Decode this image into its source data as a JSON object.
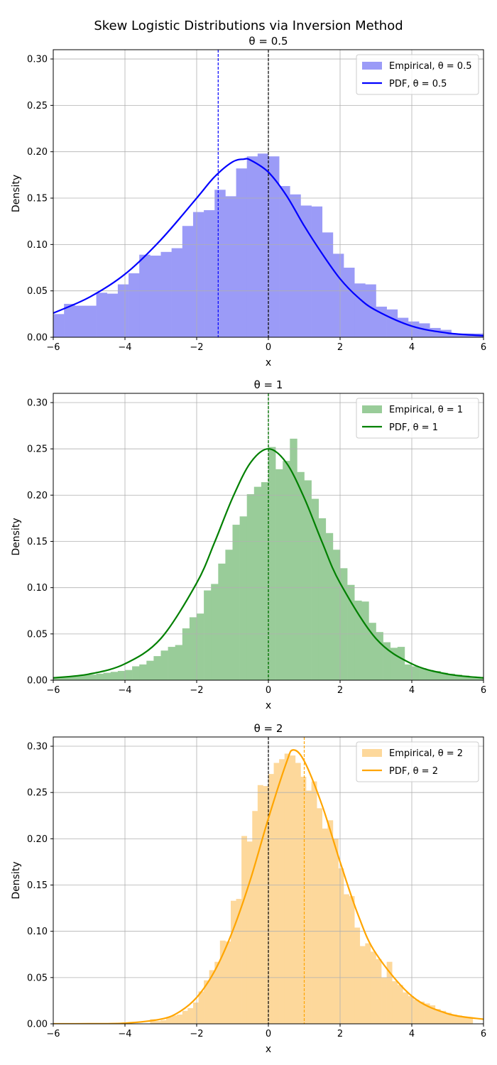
{
  "suptitle": "Skew Logistic Distributions via Inversion Method",
  "chart_data": [
    {
      "type": "bar",
      "title": "θ = 0.5",
      "theta": 0.5,
      "xlabel": "x",
      "ylabel": "Density",
      "xlim": [
        -6,
        6
      ],
      "ylim": [
        0,
        0.31
      ],
      "xticks": [
        -6,
        -4,
        -2,
        0,
        2,
        4,
        6
      ],
      "yticks": [
        0.0,
        0.05,
        0.1,
        0.15,
        0.2,
        0.25,
        0.3
      ],
      "grid": true,
      "legend": "top-right",
      "colors": {
        "bar": "#9b9bf7",
        "line": "#0000ff",
        "vline": "#0000ff"
      },
      "histogram": {
        "bin_width": 0.3,
        "bin_start": -6.0,
        "values": [
          0.025,
          0.036,
          0.034,
          0.034,
          0.048,
          0.047,
          0.057,
          0.069,
          0.089,
          0.088,
          0.092,
          0.096,
          0.12,
          0.135,
          0.137,
          0.159,
          0.152,
          0.182,
          0.195,
          0.198,
          0.195,
          0.163,
          0.154,
          0.142,
          0.141,
          0.113,
          0.09,
          0.075,
          0.058,
          0.057,
          0.033,
          0.03,
          0.021,
          0.017,
          0.015,
          0.01,
          0.008,
          0.004,
          0.004,
          0.004
        ]
      },
      "pdf": {
        "name": "PDF, θ = 0.5",
        "x": [
          -6,
          -5,
          -4,
          -3,
          -2,
          -1.5,
          -1,
          -0.69,
          -0.5,
          0,
          0.5,
          1,
          1.5,
          2,
          2.5,
          3,
          4,
          5,
          6
        ],
        "y": [
          0.026,
          0.043,
          0.068,
          0.105,
          0.15,
          0.173,
          0.189,
          0.192,
          0.191,
          0.178,
          0.153,
          0.12,
          0.09,
          0.063,
          0.043,
          0.029,
          0.012,
          0.0045,
          0.0017
        ]
      },
      "vlines": [
        {
          "x": -1.4,
          "color": "#0000ff"
        },
        {
          "x": 0,
          "color": "#000000"
        }
      ],
      "legend_entries": [
        "Empirical, θ = 0.5",
        "PDF, θ = 0.5"
      ]
    },
    {
      "type": "bar",
      "title": "θ = 1",
      "theta": 1,
      "xlabel": "x",
      "ylabel": "Density",
      "xlim": [
        -6,
        6
      ],
      "ylim": [
        0,
        0.31
      ],
      "xticks": [
        -6,
        -4,
        -2,
        0,
        2,
        4,
        6
      ],
      "yticks": [
        0.0,
        0.05,
        0.1,
        0.15,
        0.2,
        0.25,
        0.3
      ],
      "grid": true,
      "legend": "top-right",
      "colors": {
        "bar": "#99cc99",
        "line": "#008000",
        "vline": "#008000"
      },
      "histogram": {
        "bin_width": 0.2,
        "bin_start": -6.0,
        "values": [
          0.003,
          0.003,
          0.004,
          0.005,
          0.006,
          0.006,
          0.007,
          0.008,
          0.009,
          0.01,
          0.011,
          0.015,
          0.017,
          0.021,
          0.026,
          0.032,
          0.036,
          0.038,
          0.056,
          0.068,
          0.072,
          0.097,
          0.104,
          0.126,
          0.141,
          0.168,
          0.177,
          0.201,
          0.209,
          0.214,
          0.252,
          0.228,
          0.237,
          0.261,
          0.225,
          0.216,
          0.196,
          0.175,
          0.159,
          0.141,
          0.121,
          0.103,
          0.086,
          0.085,
          0.062,
          0.052,
          0.041,
          0.035,
          0.036,
          0.017,
          0.015,
          0.013,
          0.011,
          0.01,
          0.008,
          0.007,
          0.006,
          0.005,
          0.004,
          0.003
        ]
      },
      "pdf": {
        "name": "PDF, θ = 1",
        "x": [
          -6,
          -5,
          -4,
          -3,
          -2,
          -1.5,
          -1,
          -0.5,
          0,
          0.5,
          1,
          1.5,
          2,
          3,
          4,
          5,
          6
        ],
        "y": [
          0.0025,
          0.0066,
          0.0177,
          0.045,
          0.105,
          0.149,
          0.197,
          0.235,
          0.25,
          0.235,
          0.197,
          0.149,
          0.105,
          0.045,
          0.0177,
          0.0066,
          0.0025
        ]
      },
      "vlines": [
        {
          "x": 0,
          "color": "#000000"
        },
        {
          "x": 0,
          "color": "#008000"
        }
      ],
      "legend_entries": [
        "Empirical, θ = 1",
        "PDF, θ = 1"
      ]
    },
    {
      "type": "bar",
      "title": "θ = 2",
      "theta": 2,
      "xlabel": "x",
      "ylabel": "Density",
      "xlim": [
        -6,
        6
      ],
      "ylim": [
        0,
        0.31
      ],
      "xticks": [
        -6,
        -4,
        -2,
        0,
        2,
        4,
        6
      ],
      "yticks": [
        0.0,
        0.05,
        0.1,
        0.15,
        0.2,
        0.25,
        0.3
      ],
      "grid": true,
      "legend": "top-right",
      "colors": {
        "bar": "#fdd89b",
        "line": "#ffa500",
        "vline": "#ffa500"
      },
      "histogram": {
        "bin_width": 0.15,
        "bin_start": -3.3,
        "values": [
          0.005,
          0.003,
          0.004,
          0.007,
          0.009,
          0.01,
          0.014,
          0.017,
          0.023,
          0.035,
          0.047,
          0.058,
          0.067,
          0.09,
          0.089,
          0.133,
          0.135,
          0.203,
          0.197,
          0.23,
          0.258,
          0.257,
          0.27,
          0.282,
          0.286,
          0.292,
          0.29,
          0.282,
          0.267,
          0.252,
          0.262,
          0.233,
          0.211,
          0.22,
          0.2,
          0.168,
          0.14,
          0.138,
          0.104,
          0.084,
          0.087,
          0.078,
          0.07,
          0.05,
          0.067,
          0.046,
          0.042,
          0.034,
          0.03,
          0.026,
          0.024,
          0.022,
          0.02,
          0.016,
          0.014,
          0.012,
          0.01,
          0.009,
          0.007,
          0.006
        ]
      },
      "pdf": {
        "name": "PDF, θ = 2",
        "x": [
          -6,
          -5,
          -4,
          -3,
          -2.5,
          -2,
          -1.5,
          -1,
          -0.5,
          0,
          0.5,
          0.69,
          1,
          1.5,
          2,
          2.5,
          3,
          4,
          5,
          6
        ],
        "y": [
          0.0,
          0.0001,
          0.0007,
          0.005,
          0.0125,
          0.0285,
          0.057,
          0.1,
          0.156,
          0.222,
          0.282,
          0.296,
          0.284,
          0.236,
          0.175,
          0.118,
          0.076,
          0.03,
          0.011,
          0.005
        ]
      },
      "vlines": [
        {
          "x": 0,
          "color": "#000000"
        },
        {
          "x": 1.0,
          "color": "#ffa500"
        }
      ],
      "legend_entries": [
        "Empirical, θ = 2",
        "PDF, θ = 2"
      ]
    }
  ]
}
